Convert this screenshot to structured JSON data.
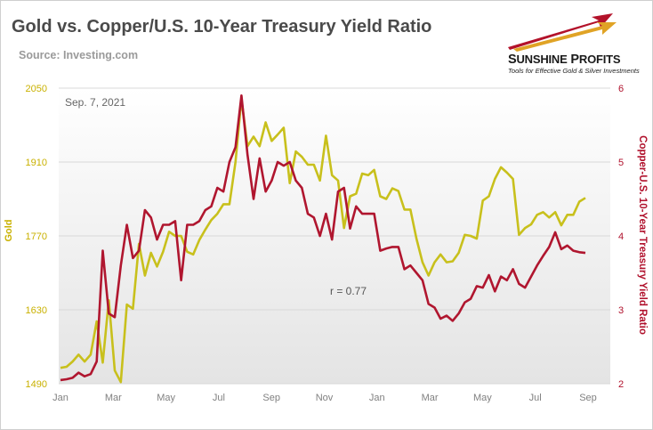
{
  "header": {
    "title": "Gold vs. Copper/U.S. 10-Year Treasury Yield Ratio",
    "source": "Source: Investing.com"
  },
  "logo": {
    "brand_big_1": "S",
    "brand_small_1": "UNSHINE",
    "brand_big_2": " P",
    "brand_small_2": "ROFITS",
    "tagline": "Tools for Effective Gold & Silver Investments"
  },
  "colors": {
    "gold": "#c8c01c",
    "copper_ratio": "#b0162f",
    "plot_bg_top": "#ffffff",
    "plot_bg_bottom": "#e6e6e6",
    "grid": "#d8d8d8"
  },
  "chart_data": {
    "type": "line",
    "date_label": "Sep. 7, 2021",
    "annotation": "r = 0.77",
    "x_tick_labels": [
      "Jan",
      "Mar",
      "May",
      "Jul",
      "Sep",
      "Nov",
      "Jan",
      "Mar",
      "May",
      "Jul",
      "Sep"
    ],
    "y_left": {
      "label": "Gold",
      "ticks": [
        1490,
        1630,
        1770,
        1910,
        2050
      ],
      "range": [
        1490,
        2050
      ]
    },
    "y_right": {
      "label": "Copper-U.S. 10-Year Treasury Yield Ratio",
      "ticks": [
        2,
        3,
        4,
        5,
        6
      ],
      "range": [
        2,
        6
      ]
    },
    "legend": "none",
    "grid": "horizontal",
    "series": [
      {
        "axis": "left",
        "values": [
          1520,
          1522,
          1532,
          1545,
          1532,
          1545,
          1608,
          1530,
          1648,
          1515,
          1493,
          1640,
          1632,
          1755,
          1695,
          1738,
          1712,
          1740,
          1778,
          1770,
          1770,
          1740,
          1735,
          1762,
          1782,
          1800,
          1812,
          1830,
          1830,
          1910,
          2030,
          1940,
          1958,
          1940,
          1985,
          1950,
          1962,
          1975,
          1870,
          1930,
          1920,
          1905,
          1905,
          1875,
          1960,
          1885,
          1875,
          1785,
          1845,
          1850,
          1888,
          1885,
          1895,
          1845,
          1840,
          1860,
          1855,
          1820,
          1820,
          1765,
          1720,
          1695,
          1720,
          1735,
          1720,
          1722,
          1738,
          1772,
          1770,
          1765,
          1837,
          1845,
          1878,
          1900,
          1890,
          1878,
          1772,
          1785,
          1792,
          1810,
          1815,
          1805,
          1815,
          1790,
          1810,
          1810,
          1835,
          1842
        ]
      },
      {
        "axis": "right",
        "values": [
          2.05,
          2.06,
          2.08,
          2.15,
          2.1,
          2.13,
          2.3,
          3.8,
          2.95,
          2.9,
          3.6,
          4.15,
          3.7,
          3.8,
          4.35,
          4.25,
          3.95,
          4.15,
          4.15,
          4.2,
          3.4,
          4.15,
          4.15,
          4.2,
          4.35,
          4.4,
          4.65,
          4.6,
          5.0,
          5.2,
          5.9,
          5.1,
          4.5,
          5.05,
          4.6,
          4.75,
          5.0,
          4.95,
          5.0,
          4.75,
          4.65,
          4.3,
          4.25,
          4.0,
          4.3,
          3.95,
          4.6,
          4.65,
          4.1,
          4.4,
          4.3,
          4.3,
          4.3,
          3.8,
          3.83,
          3.85,
          3.85,
          3.55,
          3.6,
          3.5,
          3.4,
          3.08,
          3.03,
          2.88,
          2.92,
          2.85,
          2.95,
          3.1,
          3.15,
          3.32,
          3.3,
          3.47,
          3.25,
          3.45,
          3.4,
          3.55,
          3.35,
          3.3,
          3.45,
          3.6,
          3.73,
          3.85,
          4.05,
          3.82,
          3.87,
          3.8,
          3.78,
          3.77
        ]
      }
    ]
  }
}
